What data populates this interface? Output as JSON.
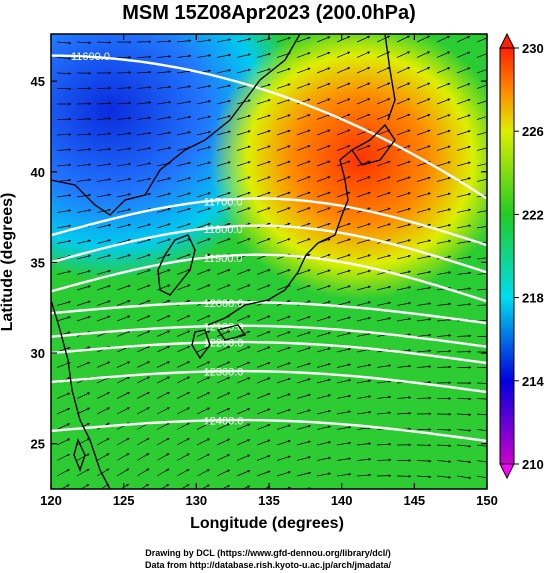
{
  "title": "MSM 15Z08Apr2023 (200.0hPa)",
  "x_axis": {
    "label": "Longitude (degrees)",
    "ticks": [
      "120",
      "125",
      "130",
      "135",
      "140",
      "145",
      "150"
    ],
    "range": [
      120,
      150
    ]
  },
  "y_axis": {
    "label": "Latitude  (degrees)",
    "ticks": [
      "25",
      "30",
      "35",
      "40",
      "45"
    ],
    "range": [
      22.5,
      47.6
    ]
  },
  "colorbar": {
    "ticks": [
      "210",
      "214",
      "218",
      "222",
      "226",
      "230"
    ],
    "range": [
      210,
      230
    ],
    "colors": [
      "#cc00cc",
      "#0000dd",
      "#00ddee",
      "#22cc22",
      "#ddee00",
      "#ff8800",
      "#ff2200"
    ]
  },
  "contours": [
    {
      "label": "11600.0",
      "lat": 44.2
    },
    {
      "label": "11700.0",
      "lat": 36.5
    },
    {
      "label": "11800.0",
      "lat": 35.0
    },
    {
      "label": "11900.0",
      "lat": 33.4
    },
    {
      "label": "12000.0",
      "lat": 32.2
    },
    {
      "label": "12100.0",
      "lat": 30.9
    },
    {
      "label": "12200.0",
      "lat": 30.0
    },
    {
      "label": "12300.0",
      "lat": 28.4
    },
    {
      "label": "12400.0",
      "lat": 25.7
    }
  ],
  "footer": {
    "line1": "Drawing by DCL (https://www.gfd-dennou.org/library/dcl/)",
    "line2": "Data from http://database.rish.kyoto-u.ac.jp/arch/jmadata/"
  },
  "chart_data": {
    "type": "heatmap",
    "title": "MSM 15Z08Apr2023 (200.0hPa)",
    "xlabel": "Longitude (degrees)",
    "ylabel": "Latitude  (degrees)",
    "xlim": [
      120,
      150
    ],
    "ylim": [
      22.5,
      47.6
    ],
    "colorbar_range": [
      210,
      230
    ],
    "contour_levels": [
      11600,
      11700,
      11800,
      11900,
      12000,
      12100,
      12200,
      12300,
      12400
    ]
  }
}
